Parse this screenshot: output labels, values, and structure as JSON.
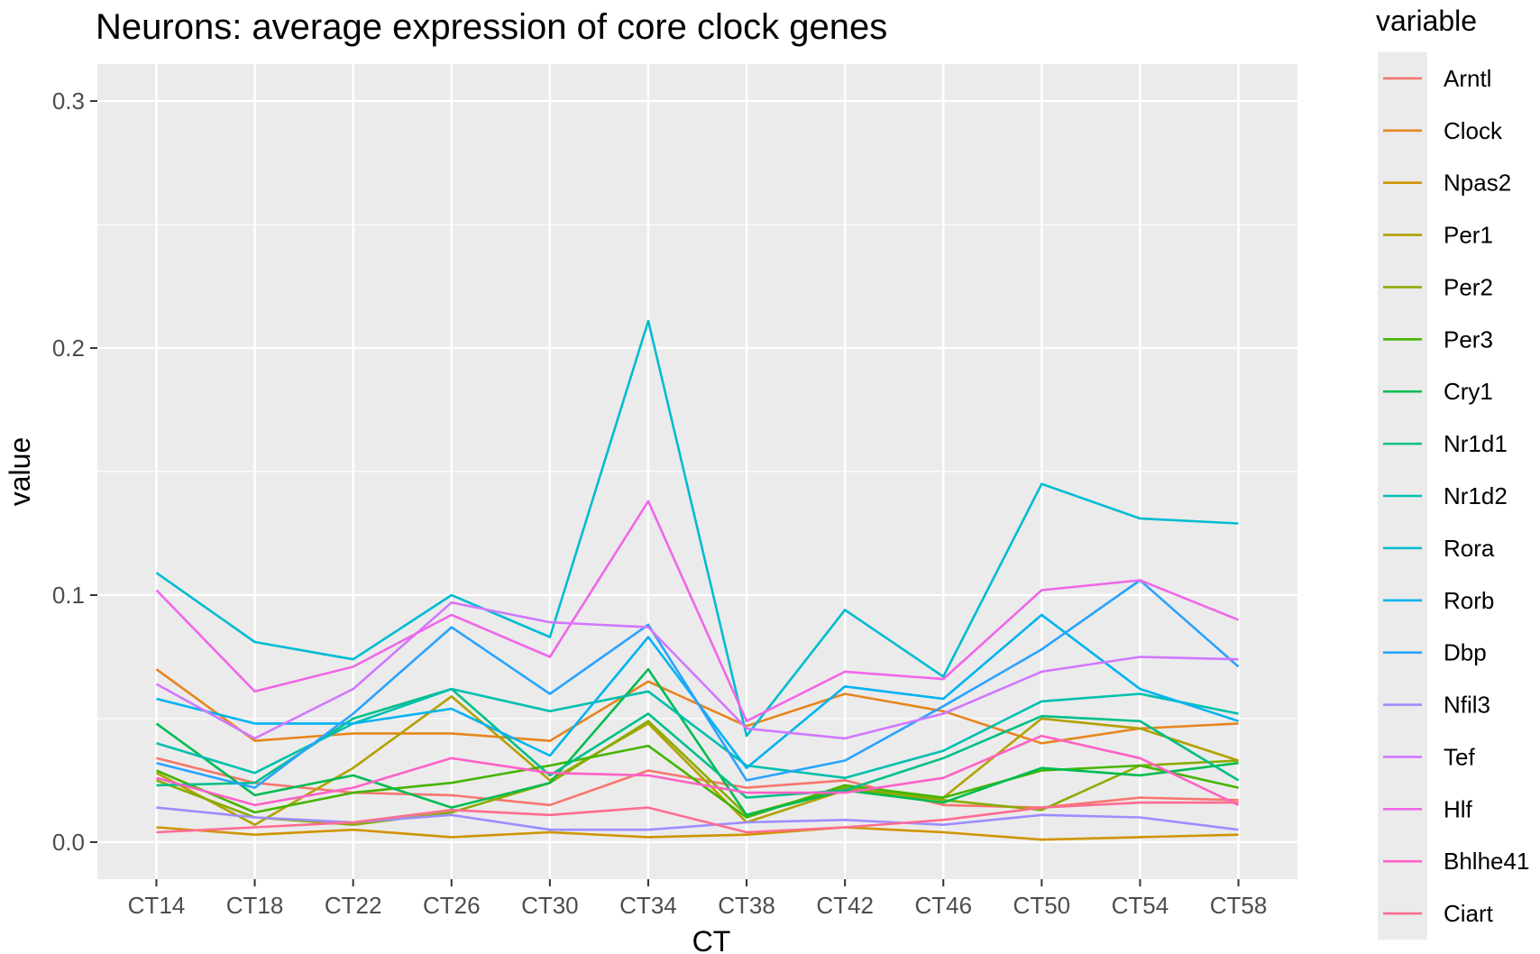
{
  "chart_data": {
    "type": "line",
    "title": "Neurons: average expression of core clock genes",
    "xlabel": "CT",
    "ylabel": "value",
    "ylim": [
      -0.015,
      0.315
    ],
    "yticks": [
      0.0,
      0.1,
      0.2,
      0.3
    ],
    "ytick_labels": [
      "0.0",
      "0.1",
      "0.2",
      "0.3"
    ],
    "grid": true,
    "legend_title": "variable",
    "legend_position": "right",
    "categories": [
      "CT14",
      "CT18",
      "CT22",
      "CT26",
      "CT30",
      "CT34",
      "CT38",
      "CT42",
      "CT46",
      "CT50",
      "CT54",
      "CT58"
    ],
    "series": [
      {
        "name": "Arntl",
        "color": "#F8766D",
        "values": [
          0.034,
          0.024,
          0.02,
          0.019,
          0.015,
          0.029,
          0.022,
          0.025,
          0.015,
          0.014,
          0.018,
          0.017
        ]
      },
      {
        "name": "Clock",
        "color": "#E7851E",
        "values": [
          0.07,
          0.041,
          0.044,
          0.044,
          0.041,
          0.065,
          0.047,
          0.06,
          0.053,
          0.04,
          0.046,
          0.048
        ]
      },
      {
        "name": "Npas2",
        "color": "#D09400",
        "values": [
          0.006,
          0.003,
          0.005,
          0.002,
          0.004,
          0.002,
          0.003,
          0.006,
          0.004,
          0.001,
          0.002,
          0.003
        ]
      },
      {
        "name": "Per1",
        "color": "#B2A100",
        "values": [
          0.028,
          0.007,
          0.03,
          0.059,
          0.025,
          0.048,
          0.008,
          0.021,
          0.018,
          0.05,
          0.046,
          0.033
        ]
      },
      {
        "name": "Per2",
        "color": "#89AC00",
        "values": [
          0.025,
          0.01,
          0.007,
          0.012,
          0.024,
          0.049,
          0.011,
          0.022,
          0.017,
          0.013,
          0.031,
          0.033
        ]
      },
      {
        "name": "Per3",
        "color": "#45B500",
        "values": [
          0.029,
          0.012,
          0.02,
          0.024,
          0.031,
          0.039,
          0.01,
          0.023,
          0.018,
          0.029,
          0.031,
          0.022
        ]
      },
      {
        "name": "Cry1",
        "color": "#00BC51",
        "values": [
          0.048,
          0.019,
          0.027,
          0.014,
          0.024,
          0.07,
          0.011,
          0.021,
          0.016,
          0.03,
          0.027,
          0.032
        ]
      },
      {
        "name": "Nr1d1",
        "color": "#00BF89",
        "values": [
          0.023,
          0.024,
          0.05,
          0.062,
          0.027,
          0.052,
          0.018,
          0.021,
          0.034,
          0.051,
          0.049,
          0.025
        ]
      },
      {
        "name": "Nr1d2",
        "color": "#00BFAF",
        "values": [
          0.04,
          0.028,
          0.048,
          0.062,
          0.053,
          0.061,
          0.031,
          0.026,
          0.037,
          0.057,
          0.06,
          0.052
        ]
      },
      {
        "name": "Rora",
        "color": "#00BCD1",
        "values": [
          0.109,
          0.081,
          0.074,
          0.1,
          0.083,
          0.211,
          0.043,
          0.094,
          0.067,
          0.145,
          0.131,
          0.129
        ]
      },
      {
        "name": "Rorb",
        "color": "#00B3F2",
        "values": [
          0.058,
          0.048,
          0.048,
          0.054,
          0.035,
          0.083,
          0.03,
          0.063,
          0.058,
          0.092,
          0.062,
          0.049
        ]
      },
      {
        "name": "Dbp",
        "color": "#29A3FF",
        "values": [
          0.032,
          0.022,
          0.052,
          0.087,
          0.06,
          0.088,
          0.025,
          0.033,
          0.055,
          0.078,
          0.106,
          0.071
        ]
      },
      {
        "name": "Nfil3",
        "color": "#9C8DFF",
        "values": [
          0.014,
          0.01,
          0.008,
          0.011,
          0.005,
          0.005,
          0.008,
          0.009,
          0.007,
          0.011,
          0.01,
          0.005
        ]
      },
      {
        "name": "Tef",
        "color": "#D277FF",
        "values": [
          0.064,
          0.042,
          0.062,
          0.097,
          0.089,
          0.087,
          0.046,
          0.042,
          0.052,
          0.069,
          0.075,
          0.074
        ]
      },
      {
        "name": "Hlf",
        "color": "#F166E8",
        "values": [
          0.102,
          0.061,
          0.071,
          0.092,
          0.075,
          0.138,
          0.049,
          0.069,
          0.066,
          0.102,
          0.106,
          0.09
        ]
      },
      {
        "name": "Bhlhe41",
        "color": "#FF61C7",
        "values": [
          0.026,
          0.015,
          0.022,
          0.034,
          0.028,
          0.027,
          0.02,
          0.02,
          0.026,
          0.043,
          0.034,
          0.015
        ]
      },
      {
        "name": "Ciart",
        "color": "#FF6C91",
        "values": [
          0.004,
          0.006,
          0.008,
          0.013,
          0.011,
          0.014,
          0.004,
          0.006,
          0.009,
          0.014,
          0.016,
          0.016
        ]
      }
    ]
  }
}
